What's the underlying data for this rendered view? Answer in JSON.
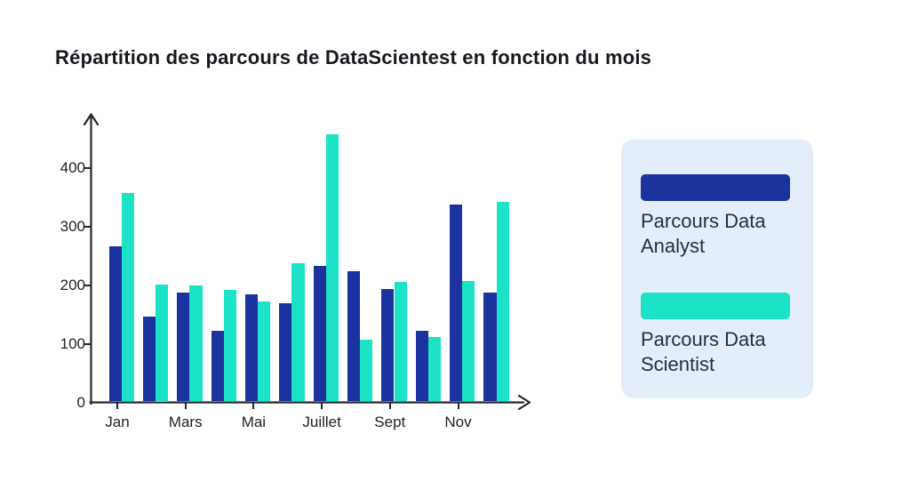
{
  "title": "Répartition des parcours de DataScientest en fonction du mois",
  "colors": {
    "analyst": "#1b339e",
    "scientist": "#1ce3c7",
    "legend_panel_bg": "#e4edfa",
    "axis": "#26262b",
    "axis_label_text": "#212126",
    "legend_text": "#243047",
    "title_text": "#18181f"
  },
  "legend": {
    "items": [
      {
        "label": "Parcours Data Analyst",
        "color": "#1b339e"
      },
      {
        "label": "Parcours Data Scientist",
        "color": "#1ce3c7"
      }
    ]
  },
  "chart_data": {
    "type": "bar",
    "title": "Répartition des parcours de DataScientest en fonction du mois",
    "categories": [
      "Jan",
      "",
      "Mars",
      "",
      "Mai",
      "",
      "Juillet",
      "",
      "Sept",
      "",
      "Nov",
      ""
    ],
    "x_tick_labels": [
      "Jan",
      "Mars",
      "Mai",
      "Juillet",
      "Sept",
      "Nov"
    ],
    "series": [
      {
        "name": "Parcours Data Analyst",
        "color": "#1b339e",
        "values": [
          265,
          145,
          185,
          120,
          182,
          168,
          231,
          222,
          192,
          120,
          335,
          185
        ]
      },
      {
        "name": "Parcours Data Scientist",
        "color": "#1ce3c7",
        "values": [
          355,
          200,
          197,
          190,
          170,
          236,
          456,
          105,
          204,
          110,
          205,
          340
        ]
      }
    ],
    "y_ticks": [
      0,
      100,
      200,
      300,
      400
    ],
    "ylim": [
      0,
      490
    ],
    "xlabel": "",
    "ylabel": "",
    "grid": false,
    "legend_position": "right-panel"
  }
}
